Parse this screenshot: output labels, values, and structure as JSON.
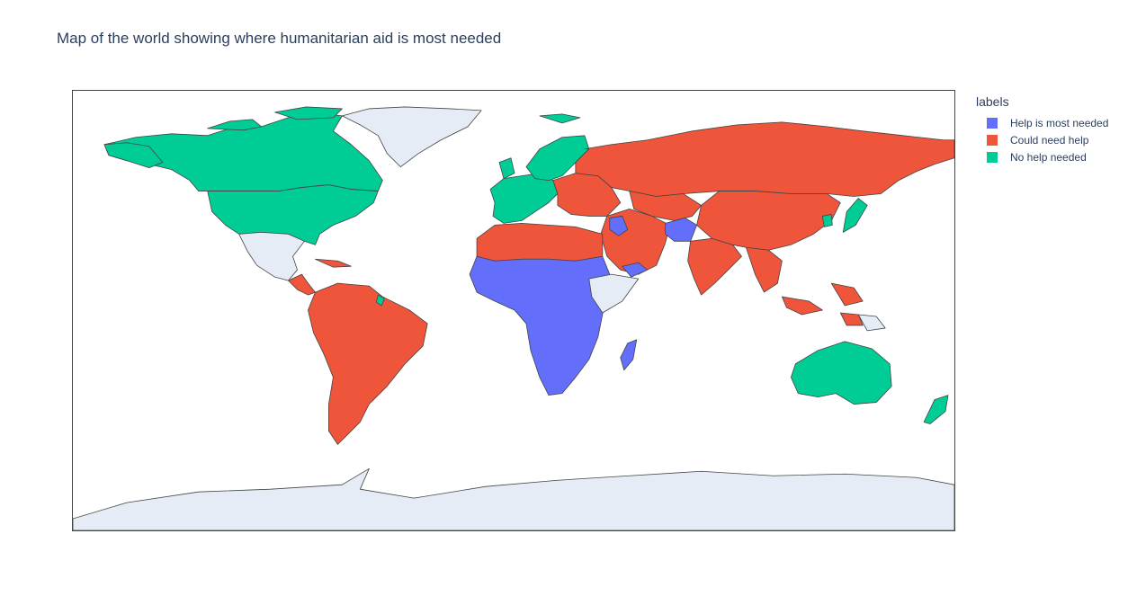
{
  "title": "Map of the world showing where humanitarian aid is most needed",
  "legend": {
    "title": "labels",
    "items": [
      {
        "label": "Help is most needed",
        "color": "#636efa"
      },
      {
        "label": "Could need help",
        "color": "#ef553b"
      },
      {
        "label": "No help needed",
        "color": "#00cc96"
      }
    ]
  },
  "colors": {
    "no_data": "#e5ecf6",
    "border": "#444444",
    "ocean": "#ffffff"
  },
  "chart_data": {
    "type": "choropleth",
    "projection": "equirectangular",
    "categories": [
      "Help is most needed",
      "Could need help",
      "No help needed"
    ],
    "regions": [
      {
        "name": "Canada",
        "label": "No help needed"
      },
      {
        "name": "United States",
        "label": "No help needed"
      },
      {
        "name": "Greenland",
        "label": "no data"
      },
      {
        "name": "Mexico",
        "label": "no data"
      },
      {
        "name": "Central America",
        "label": "Could need help"
      },
      {
        "name": "South America",
        "label": "Could need help"
      },
      {
        "name": "Western Europe",
        "label": "No help needed"
      },
      {
        "name": "Scandinavia",
        "label": "No help needed"
      },
      {
        "name": "Eastern Europe",
        "label": "Could need help"
      },
      {
        "name": "Russia",
        "label": "Could need help"
      },
      {
        "name": "North Africa",
        "label": "Could need help"
      },
      {
        "name": "Sub-Saharan Africa",
        "label": "Help is most needed"
      },
      {
        "name": "Horn of Africa",
        "label": "no data"
      },
      {
        "name": "Madagascar",
        "label": "Help is most needed"
      },
      {
        "name": "Middle East",
        "label": "Could need help"
      },
      {
        "name": "Afghanistan",
        "label": "Help is most needed"
      },
      {
        "name": "Yemen",
        "label": "Help is most needed"
      },
      {
        "name": "Iraq",
        "label": "Help is most needed"
      },
      {
        "name": "India",
        "label": "Could need help"
      },
      {
        "name": "China",
        "label": "Could need help"
      },
      {
        "name": "Southeast Asia",
        "label": "Could need help"
      },
      {
        "name": "Myanmar",
        "label": "Help is most needed"
      },
      {
        "name": "Japan",
        "label": "No help needed"
      },
      {
        "name": "South Korea",
        "label": "No help needed"
      },
      {
        "name": "Australia",
        "label": "No help needed"
      },
      {
        "name": "New Zealand",
        "label": "No help needed"
      },
      {
        "name": "Papua New Guinea",
        "label": "no data"
      },
      {
        "name": "Antarctica",
        "label": "no data"
      }
    ]
  }
}
